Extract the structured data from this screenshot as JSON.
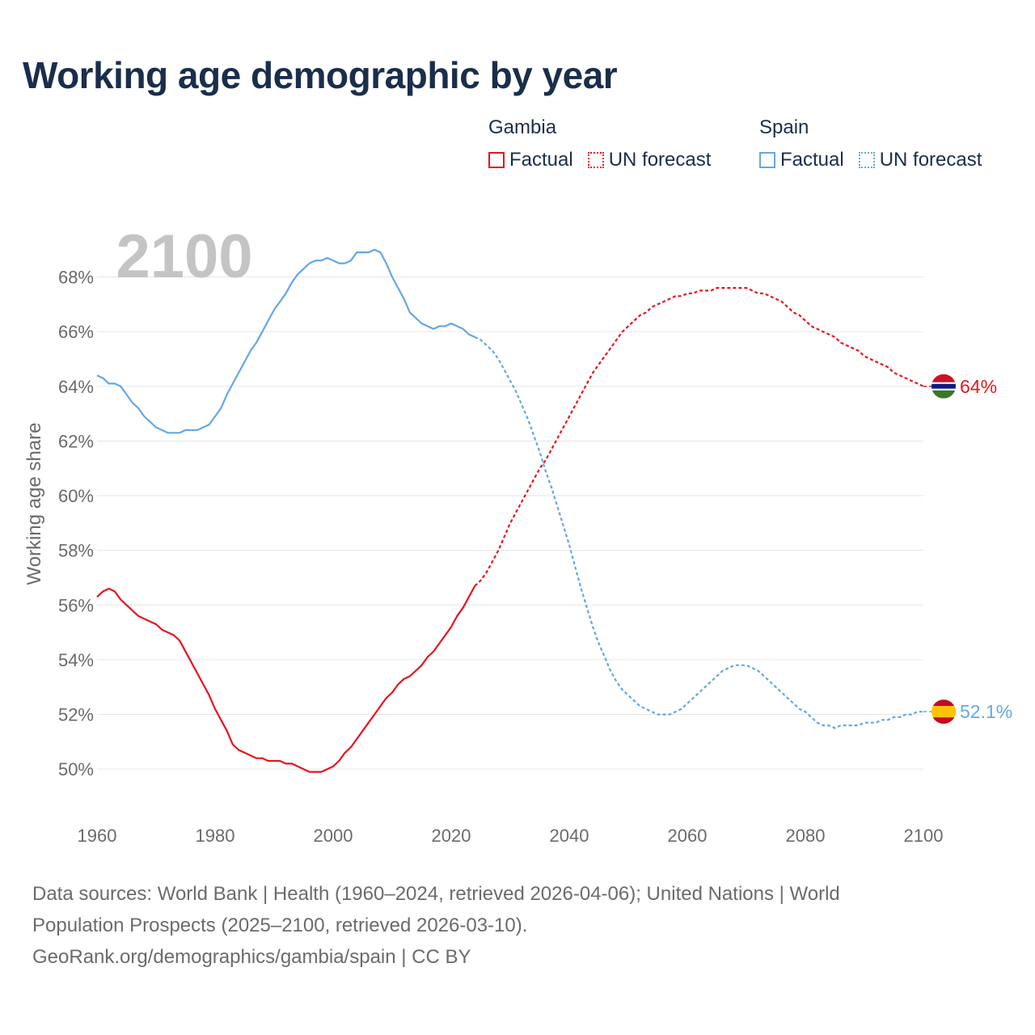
{
  "title": "Working age demographic by year",
  "legend": {
    "gambia_label": "Gambia",
    "spain_label": "Spain",
    "factual_label": "Factual",
    "forecast_label": "UN forecast"
  },
  "colors": {
    "gambia": "#e8141e",
    "spain": "#64a8e4",
    "grid": "#e6e6e6",
    "axis_text": "#6b6b6b",
    "year_watermark": "#c4c4c4"
  },
  "sources": {
    "line1": "Data sources: World Bank | Health (1960–2024, retrieved 2026-04-06); United Nations | World",
    "line2": "Population Prospects (2025–2100, retrieved 2026-03-10).",
    "line3": "GeoRank.org/demographics/gambia/spain | CC BY"
  },
  "chart_data": {
    "type": "line",
    "title": "Working age demographic by year",
    "ylabel": "Working age share",
    "xlabel": "",
    "year_watermark": "2100",
    "xlim": [
      1960,
      2100
    ],
    "ylim": [
      49,
      70.5
    ],
    "x_ticks": [
      1960,
      1980,
      2000,
      2020,
      2040,
      2060,
      2080,
      2100
    ],
    "y_ticks": [
      50,
      52,
      54,
      56,
      58,
      60,
      62,
      64,
      66,
      68
    ],
    "y_tick_labels": [
      "50%",
      "52%",
      "54%",
      "56%",
      "58%",
      "60%",
      "62%",
      "64%",
      "66%",
      "68%"
    ],
    "factual_until": 2024,
    "series": [
      {
        "name": "Gambia",
        "end_label": "64%",
        "points": [
          [
            1960,
            56.3
          ],
          [
            1961,
            56.5
          ],
          [
            1962,
            56.6
          ],
          [
            1963,
            56.5
          ],
          [
            1964,
            56.2
          ],
          [
            1965,
            56.0
          ],
          [
            1966,
            55.8
          ],
          [
            1967,
            55.6
          ],
          [
            1968,
            55.5
          ],
          [
            1969,
            55.4
          ],
          [
            1970,
            55.3
          ],
          [
            1971,
            55.1
          ],
          [
            1972,
            55.0
          ],
          [
            1973,
            54.9
          ],
          [
            1974,
            54.7
          ],
          [
            1975,
            54.3
          ],
          [
            1976,
            53.9
          ],
          [
            1977,
            53.5
          ],
          [
            1978,
            53.1
          ],
          [
            1979,
            52.7
          ],
          [
            1980,
            52.2
          ],
          [
            1981,
            51.8
          ],
          [
            1982,
            51.4
          ],
          [
            1983,
            50.9
          ],
          [
            1984,
            50.7
          ],
          [
            1985,
            50.6
          ],
          [
            1986,
            50.5
          ],
          [
            1987,
            50.4
          ],
          [
            1988,
            50.4
          ],
          [
            1989,
            50.3
          ],
          [
            1990,
            50.3
          ],
          [
            1991,
            50.3
          ],
          [
            1992,
            50.2
          ],
          [
            1993,
            50.2
          ],
          [
            1994,
            50.1
          ],
          [
            1995,
            50.0
          ],
          [
            1996,
            49.9
          ],
          [
            1997,
            49.9
          ],
          [
            1998,
            49.9
          ],
          [
            1999,
            50.0
          ],
          [
            2000,
            50.1
          ],
          [
            2001,
            50.3
          ],
          [
            2002,
            50.6
          ],
          [
            2003,
            50.8
          ],
          [
            2004,
            51.1
          ],
          [
            2005,
            51.4
          ],
          [
            2006,
            51.7
          ],
          [
            2007,
            52.0
          ],
          [
            2008,
            52.3
          ],
          [
            2009,
            52.6
          ],
          [
            2010,
            52.8
          ],
          [
            2011,
            53.1
          ],
          [
            2012,
            53.3
          ],
          [
            2013,
            53.4
          ],
          [
            2014,
            53.6
          ],
          [
            2015,
            53.8
          ],
          [
            2016,
            54.1
          ],
          [
            2017,
            54.3
          ],
          [
            2018,
            54.6
          ],
          [
            2019,
            54.9
          ],
          [
            2020,
            55.2
          ],
          [
            2021,
            55.6
          ],
          [
            2022,
            55.9
          ],
          [
            2023,
            56.3
          ],
          [
            2024,
            56.7
          ],
          [
            2025,
            56.9
          ],
          [
            2026,
            57.2
          ],
          [
            2027,
            57.6
          ],
          [
            2028,
            58.0
          ],
          [
            2029,
            58.5
          ],
          [
            2030,
            59.0
          ],
          [
            2031,
            59.4
          ],
          [
            2032,
            59.8
          ],
          [
            2033,
            60.2
          ],
          [
            2034,
            60.6
          ],
          [
            2035,
            61.0
          ],
          [
            2036,
            61.3
          ],
          [
            2037,
            61.7
          ],
          [
            2038,
            62.1
          ],
          [
            2039,
            62.5
          ],
          [
            2040,
            62.9
          ],
          [
            2041,
            63.3
          ],
          [
            2042,
            63.7
          ],
          [
            2043,
            64.1
          ],
          [
            2044,
            64.5
          ],
          [
            2045,
            64.8
          ],
          [
            2046,
            65.1
          ],
          [
            2047,
            65.4
          ],
          [
            2048,
            65.7
          ],
          [
            2049,
            66.0
          ],
          [
            2050,
            66.2
          ],
          [
            2051,
            66.4
          ],
          [
            2052,
            66.6
          ],
          [
            2053,
            66.7
          ],
          [
            2054,
            66.9
          ],
          [
            2055,
            67.0
          ],
          [
            2056,
            67.1
          ],
          [
            2057,
            67.2
          ],
          [
            2058,
            67.3
          ],
          [
            2059,
            67.3
          ],
          [
            2060,
            67.4
          ],
          [
            2061,
            67.4
          ],
          [
            2062,
            67.5
          ],
          [
            2063,
            67.5
          ],
          [
            2064,
            67.5
          ],
          [
            2065,
            67.6
          ],
          [
            2066,
            67.6
          ],
          [
            2067,
            67.6
          ],
          [
            2068,
            67.6
          ],
          [
            2069,
            67.6
          ],
          [
            2070,
            67.6
          ],
          [
            2071,
            67.5
          ],
          [
            2072,
            67.4
          ],
          [
            2073,
            67.4
          ],
          [
            2074,
            67.3
          ],
          [
            2075,
            67.2
          ],
          [
            2076,
            67.1
          ],
          [
            2077,
            66.9
          ],
          [
            2078,
            66.7
          ],
          [
            2079,
            66.6
          ],
          [
            2080,
            66.4
          ],
          [
            2081,
            66.2
          ],
          [
            2082,
            66.1
          ],
          [
            2083,
            66.0
          ],
          [
            2084,
            65.9
          ],
          [
            2085,
            65.8
          ],
          [
            2086,
            65.6
          ],
          [
            2087,
            65.5
          ],
          [
            2088,
            65.4
          ],
          [
            2089,
            65.3
          ],
          [
            2090,
            65.1
          ],
          [
            2091,
            65.0
          ],
          [
            2092,
            64.9
          ],
          [
            2093,
            64.8
          ],
          [
            2094,
            64.7
          ],
          [
            2095,
            64.5
          ],
          [
            2096,
            64.4
          ],
          [
            2097,
            64.3
          ],
          [
            2098,
            64.2
          ],
          [
            2099,
            64.1
          ],
          [
            2100,
            64.0
          ]
        ]
      },
      {
        "name": "Spain",
        "end_label": "52.1%",
        "points": [
          [
            1960,
            64.4
          ],
          [
            1961,
            64.3
          ],
          [
            1962,
            64.1
          ],
          [
            1963,
            64.1
          ],
          [
            1964,
            64.0
          ],
          [
            1965,
            63.7
          ],
          [
            1966,
            63.4
          ],
          [
            1967,
            63.2
          ],
          [
            1968,
            62.9
          ],
          [
            1969,
            62.7
          ],
          [
            1970,
            62.5
          ],
          [
            1971,
            62.4
          ],
          [
            1972,
            62.3
          ],
          [
            1973,
            62.3
          ],
          [
            1974,
            62.3
          ],
          [
            1975,
            62.4
          ],
          [
            1976,
            62.4
          ],
          [
            1977,
            62.4
          ],
          [
            1978,
            62.5
          ],
          [
            1979,
            62.6
          ],
          [
            1980,
            62.9
          ],
          [
            1981,
            63.2
          ],
          [
            1982,
            63.7
          ],
          [
            1983,
            64.1
          ],
          [
            1984,
            64.5
          ],
          [
            1985,
            64.9
          ],
          [
            1986,
            65.3
          ],
          [
            1987,
            65.6
          ],
          [
            1988,
            66.0
          ],
          [
            1989,
            66.4
          ],
          [
            1990,
            66.8
          ],
          [
            1991,
            67.1
          ],
          [
            1992,
            67.4
          ],
          [
            1993,
            67.8
          ],
          [
            1994,
            68.1
          ],
          [
            1995,
            68.3
          ],
          [
            1996,
            68.5
          ],
          [
            1997,
            68.6
          ],
          [
            1998,
            68.6
          ],
          [
            1999,
            68.7
          ],
          [
            2000,
            68.6
          ],
          [
            2001,
            68.5
          ],
          [
            2002,
            68.5
          ],
          [
            2003,
            68.6
          ],
          [
            2004,
            68.9
          ],
          [
            2005,
            68.9
          ],
          [
            2006,
            68.9
          ],
          [
            2007,
            69.0
          ],
          [
            2008,
            68.9
          ],
          [
            2009,
            68.5
          ],
          [
            2010,
            68.0
          ],
          [
            2011,
            67.6
          ],
          [
            2012,
            67.2
          ],
          [
            2013,
            66.7
          ],
          [
            2014,
            66.5
          ],
          [
            2015,
            66.3
          ],
          [
            2016,
            66.2
          ],
          [
            2017,
            66.1
          ],
          [
            2018,
            66.2
          ],
          [
            2019,
            66.2
          ],
          [
            2020,
            66.3
          ],
          [
            2021,
            66.2
          ],
          [
            2022,
            66.1
          ],
          [
            2023,
            65.9
          ],
          [
            2024,
            65.8
          ],
          [
            2025,
            65.7
          ],
          [
            2026,
            65.5
          ],
          [
            2027,
            65.3
          ],
          [
            2028,
            65.0
          ],
          [
            2029,
            64.6
          ],
          [
            2030,
            64.2
          ],
          [
            2031,
            63.8
          ],
          [
            2032,
            63.3
          ],
          [
            2033,
            62.8
          ],
          [
            2034,
            62.2
          ],
          [
            2035,
            61.6
          ],
          [
            2036,
            60.9
          ],
          [
            2037,
            60.3
          ],
          [
            2038,
            59.6
          ],
          [
            2039,
            58.9
          ],
          [
            2040,
            58.2
          ],
          [
            2041,
            57.4
          ],
          [
            2042,
            56.6
          ],
          [
            2043,
            55.9
          ],
          [
            2044,
            55.2
          ],
          [
            2045,
            54.6
          ],
          [
            2046,
            54.1
          ],
          [
            2047,
            53.6
          ],
          [
            2048,
            53.2
          ],
          [
            2049,
            52.9
          ],
          [
            2050,
            52.7
          ],
          [
            2051,
            52.5
          ],
          [
            2052,
            52.3
          ],
          [
            2053,
            52.2
          ],
          [
            2054,
            52.1
          ],
          [
            2055,
            52.0
          ],
          [
            2056,
            52.0
          ],
          [
            2057,
            52.0
          ],
          [
            2058,
            52.1
          ],
          [
            2059,
            52.2
          ],
          [
            2060,
            52.4
          ],
          [
            2061,
            52.6
          ],
          [
            2062,
            52.8
          ],
          [
            2063,
            53.0
          ],
          [
            2064,
            53.2
          ],
          [
            2065,
            53.4
          ],
          [
            2066,
            53.6
          ],
          [
            2067,
            53.7
          ],
          [
            2068,
            53.8
          ],
          [
            2069,
            53.8
          ],
          [
            2070,
            53.8
          ],
          [
            2071,
            53.7
          ],
          [
            2072,
            53.6
          ],
          [
            2073,
            53.4
          ],
          [
            2074,
            53.2
          ],
          [
            2075,
            53.0
          ],
          [
            2076,
            52.8
          ],
          [
            2077,
            52.6
          ],
          [
            2078,
            52.4
          ],
          [
            2079,
            52.2
          ],
          [
            2080,
            52.1
          ],
          [
            2081,
            51.9
          ],
          [
            2082,
            51.7
          ],
          [
            2083,
            51.6
          ],
          [
            2084,
            51.6
          ],
          [
            2085,
            51.5
          ],
          [
            2086,
            51.6
          ],
          [
            2087,
            51.6
          ],
          [
            2088,
            51.6
          ],
          [
            2089,
            51.6
          ],
          [
            2090,
            51.7
          ],
          [
            2091,
            51.7
          ],
          [
            2092,
            51.7
          ],
          [
            2093,
            51.8
          ],
          [
            2094,
            51.8
          ],
          [
            2095,
            51.9
          ],
          [
            2096,
            51.9
          ],
          [
            2097,
            52.0
          ],
          [
            2098,
            52.0
          ],
          [
            2099,
            52.1
          ],
          [
            2100,
            52.1
          ]
        ]
      }
    ]
  }
}
